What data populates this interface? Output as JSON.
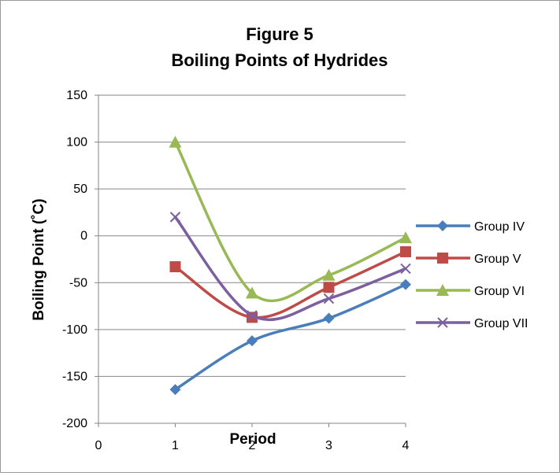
{
  "chart_data": {
    "type": "line",
    "title": "Figure 5",
    "subtitle": "Boiling Points of Hydrides",
    "xlabel": "Period",
    "ylabel": "Boiling Point (˚C)",
    "xlim": [
      0,
      4
    ],
    "ylim": [
      -200,
      150
    ],
    "x_ticks": [
      0,
      1,
      2,
      3,
      4
    ],
    "y_ticks": [
      150,
      100,
      50,
      0,
      -50,
      -100,
      -150,
      -200
    ],
    "grid": true,
    "legend_position": "right",
    "smooth": true,
    "series": [
      {
        "name": "Group IV",
        "color": "#4a7ebb",
        "marker": "diamond",
        "x": [
          1,
          2,
          3,
          4
        ],
        "y": [
          -164,
          -112,
          -88,
          -52
        ]
      },
      {
        "name": "Group V",
        "color": "#be4b48",
        "marker": "square",
        "x": [
          1,
          2,
          3,
          4
        ],
        "y": [
          -33,
          -87,
          -55,
          -17
        ]
      },
      {
        "name": "Group VI",
        "color": "#98b954",
        "marker": "triangle",
        "x": [
          1,
          2,
          3,
          4
        ],
        "y": [
          100,
          -61,
          -42,
          -2
        ]
      },
      {
        "name": "Group VII",
        "color": "#7d5fa0",
        "marker": "x",
        "x": [
          1,
          2,
          3,
          4
        ],
        "y": [
          20,
          -85,
          -67,
          -35
        ]
      }
    ]
  }
}
